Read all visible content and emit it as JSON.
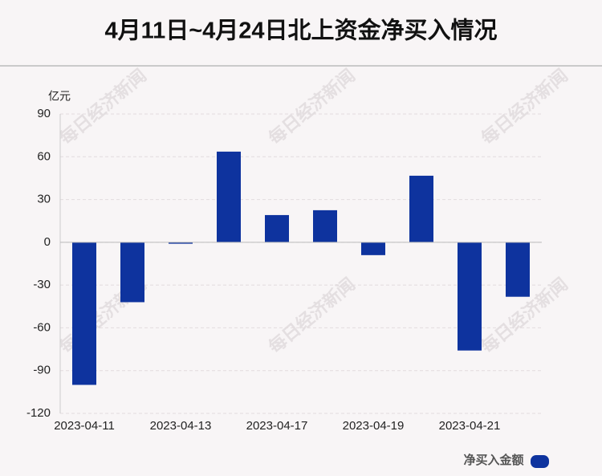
{
  "chart_data": {
    "type": "bar",
    "title": "4月11日~4月24日北上资金净买入情况",
    "y_unit": "亿元",
    "watermark": "每日经济新闻",
    "categories": [
      "2023-04-11",
      null,
      "2023-04-13",
      null,
      "2023-04-17",
      null,
      "2023-04-19",
      null,
      "2023-04-21",
      null
    ],
    "series": [
      {
        "name": "净买入金额",
        "color": "#0e339e",
        "values": [
          -100,
          -42,
          -1,
          63.6,
          19.1,
          22.5,
          -9,
          46.7,
          -75.9,
          -38.2
        ]
      }
    ],
    "ylim": [
      -120,
      90
    ],
    "yticks": [
      -120,
      -90,
      -60,
      -30,
      0,
      30,
      60,
      90
    ],
    "grid": true
  }
}
